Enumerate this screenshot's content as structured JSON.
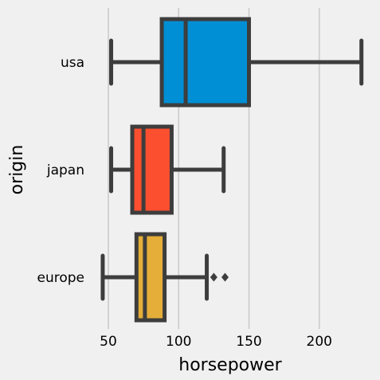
{
  "chart_data": {
    "type": "box",
    "orientation": "horizontal",
    "xlabel": "horsepower",
    "ylabel": "origin",
    "xlim": [
      40,
      235
    ],
    "xticks": [
      50,
      100,
      150,
      200
    ],
    "grid": "vertical",
    "colors": {
      "background": "#f0f0f0",
      "grid": "#cbcbcb",
      "outline": "#3d3d3d"
    },
    "series": [
      {
        "category": "usa",
        "color": "#008fd5",
        "whisker_low": 52,
        "q1": 88,
        "median": 105,
        "q3": 150,
        "whisker_high": 230,
        "outliers": []
      },
      {
        "category": "japan",
        "color": "#fc4f30",
        "whisker_low": 52,
        "q1": 67,
        "median": 75,
        "q3": 95,
        "whisker_high": 132,
        "outliers": []
      },
      {
        "category": "europe",
        "color": "#e5ae38",
        "whisker_low": 46,
        "q1": 70,
        "median": 76,
        "q3": 90,
        "whisker_high": 120,
        "outliers": [
          125,
          133
        ]
      }
    ]
  }
}
